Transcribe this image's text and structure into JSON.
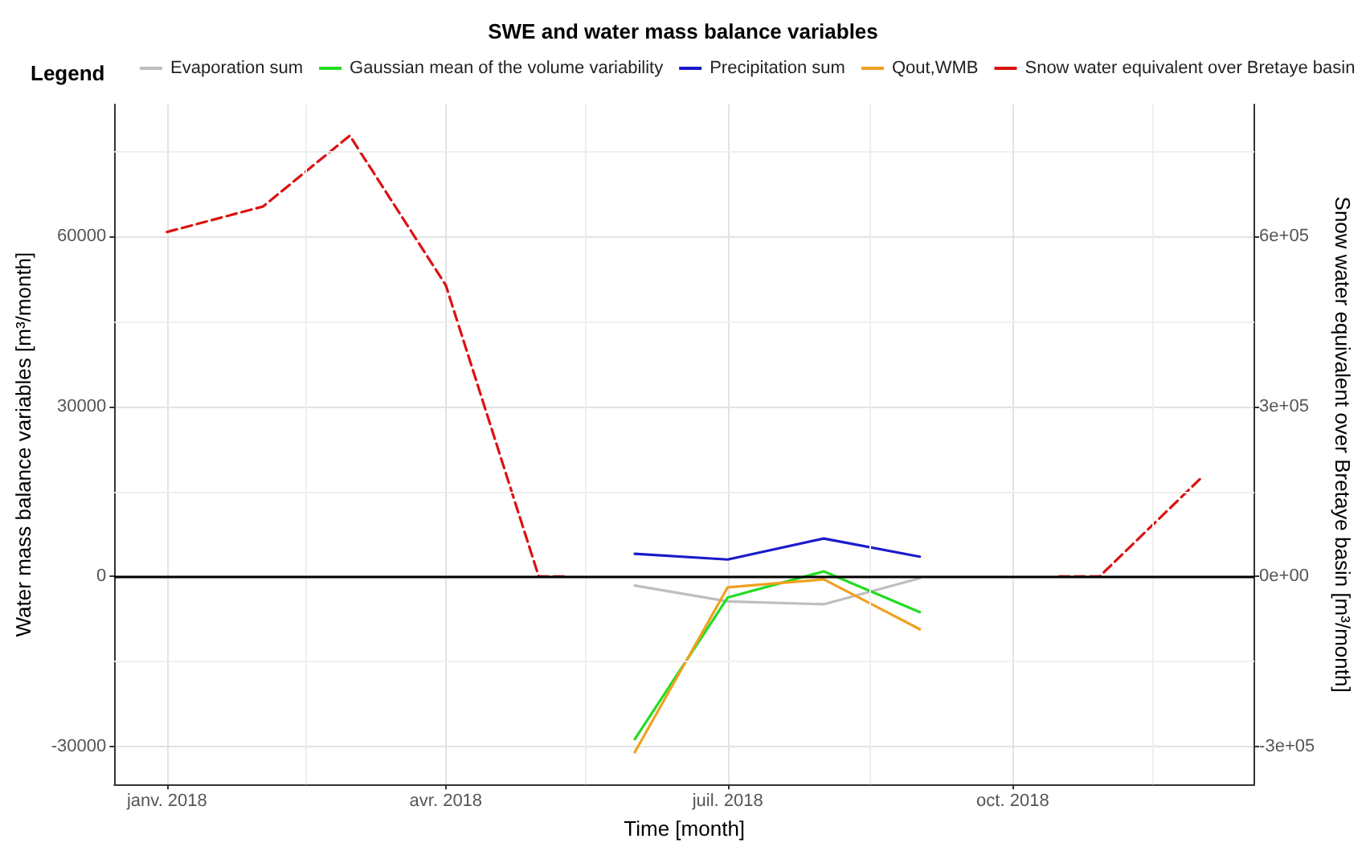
{
  "chart_data": {
    "type": "line",
    "title": "SWE and water mass balance variables",
    "xlabel": "Time [month]",
    "ylabel": "Water mass balance variables [m³/month]",
    "y2label": "Snow water equivalent over Bretaye basin [m³/month]",
    "legend_title": "Legend",
    "legend": "top",
    "grid": true,
    "marker": "none",
    "xlim": [
      "2017-12-15",
      "2018-12-18"
    ],
    "xticks": [
      {
        "value": "2018-01-01",
        "label": "janv. 2018"
      },
      {
        "value": "2018-02-15",
        "label": null
      },
      {
        "value": "2018-04-01",
        "label": "avr. 2018"
      },
      {
        "value": "2018-05-16",
        "label": null
      },
      {
        "value": "2018-07-01",
        "label": "juil. 2018"
      },
      {
        "value": "2018-08-16",
        "label": null
      },
      {
        "value": "2018-10-01",
        "label": "oct. 2018"
      },
      {
        "value": "2018-11-15",
        "label": null
      }
    ],
    "ylim": [
      -36700,
      83300
    ],
    "yticks": [
      {
        "value": -30000,
        "label": "-30000"
      },
      {
        "value": -15000,
        "label": null
      },
      {
        "value": 0,
        "label": "0"
      },
      {
        "value": 15000,
        "label": null
      },
      {
        "value": 30000,
        "label": "30000"
      },
      {
        "value": 45000,
        "label": null
      },
      {
        "value": 60000,
        "label": "60000"
      },
      {
        "value": 75000,
        "label": null
      }
    ],
    "y2lim": [
      -367000,
      833000
    ],
    "y2ticks": [
      {
        "value": -300000,
        "label": "-3e+05"
      },
      {
        "value": 0,
        "label": "0e+00"
      },
      {
        "value": 300000,
        "label": "3e+05"
      },
      {
        "value": 600000,
        "label": "6e+05"
      }
    ],
    "ref_lines": [
      {
        "axis": "y",
        "value": 0,
        "color": "#000000"
      }
    ],
    "series": [
      {
        "name": "Evaporation sum",
        "color": "#bebebe",
        "x": [
          "2018-06-01",
          "2018-07-01",
          "2018-08-01",
          "2018-09-01"
        ],
        "values": [
          -1600,
          -4400,
          -4900,
          -300
        ]
      },
      {
        "name": "Gaussian mean of the volume variability",
        "color": "#22dd22",
        "x": [
          "2018-06-01",
          "2018-07-01",
          "2018-08-01",
          "2018-09-01"
        ],
        "values": [
          -28700,
          -3700,
          900,
          -6300
        ]
      },
      {
        "name": "Precipitation sum",
        "color": "#1a1acc",
        "x": [
          "2018-06-01",
          "2018-07-01",
          "2018-08-01",
          "2018-09-01"
        ],
        "values": [
          4000,
          3000,
          6700,
          3500
        ]
      },
      {
        "name": "Qout,WMB",
        "color": "#f0a020",
        "x": [
          "2018-06-01",
          "2018-07-01",
          "2018-08-01",
          "2018-09-01"
        ],
        "values": [
          -31000,
          -1900,
          -500,
          -9300
        ]
      },
      {
        "name": "Snow water equivalent over Bretaye basin",
        "color": "#dd1111",
        "axis": "y2",
        "line_style": "dashed",
        "x": [
          "2018-01-01",
          "2018-02-01",
          "2018-03-01",
          "2018-04-01",
          "2018-05-01",
          "2018-05-10",
          "2018-07-01",
          "2018-10-16",
          "2018-10-29",
          "2018-12-01"
        ],
        "values": [
          608000,
          653000,
          778000,
          514000,
          0,
          0,
          null,
          0,
          0,
          175000
        ]
      }
    ]
  }
}
